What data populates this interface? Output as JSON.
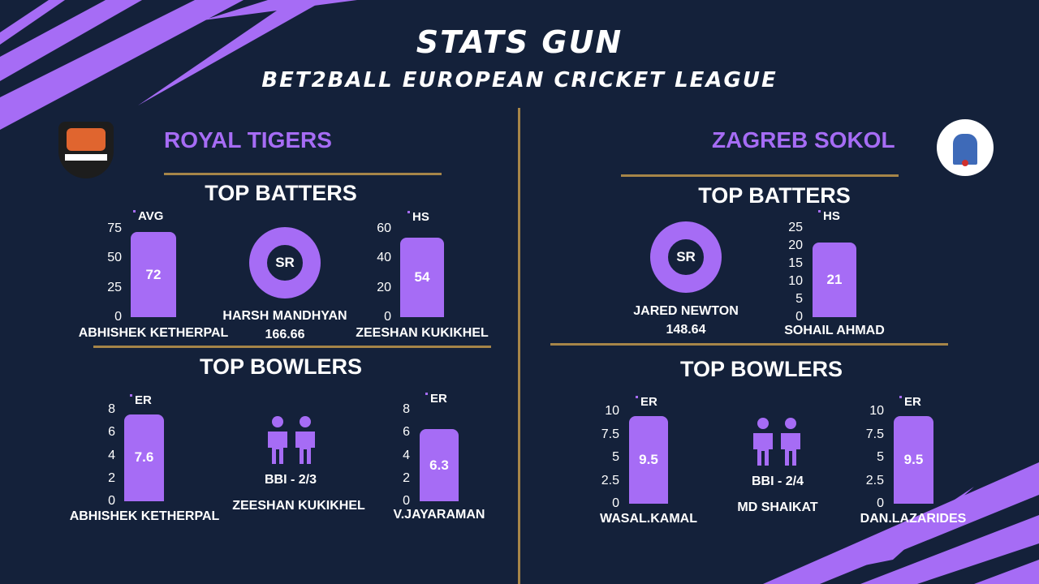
{
  "header": {
    "title": "STATS GUN",
    "subtitle": "BET2BALL EUROPEAN CRICKET LEAGUE"
  },
  "colors": {
    "background": "#14213a",
    "accent": "#a66cf5",
    "divider": "#a68548"
  },
  "left_team": {
    "name": "ROYAL TIGERS",
    "batters_heading": "TOP BATTERS",
    "bowlers_heading": "TOP BOWLERS",
    "sr_player": {
      "label": "SR",
      "name": "HARSH MANDHYAN",
      "value": "166.66"
    },
    "bbi_player": {
      "label": "BBI - 2/3",
      "name": "ZEESHAN KUKIKHEL"
    }
  },
  "right_team": {
    "name": "ZAGREB SOKOL",
    "batters_heading": "TOP BATTERS",
    "bowlers_heading": "TOP BOWLERS",
    "sr_player": {
      "label": "SR",
      "name": "JARED NEWTON",
      "value": "148.64"
    },
    "bbi_player": {
      "label": "BBI - 2/4",
      "name": "MD SHAIKAT"
    }
  },
  "chart_data": [
    {
      "type": "bar",
      "metric": "AVG",
      "categories": [
        "ABHISHEK KETHERPAL"
      ],
      "values": [
        72
      ],
      "ticks": [
        "0",
        "25",
        "50",
        "75"
      ],
      "ylim": [
        0,
        75
      ]
    },
    {
      "type": "bar",
      "metric": "HS",
      "categories": [
        "ZEESHAN KUKIKHEL"
      ],
      "values": [
        54
      ],
      "ticks": [
        "0",
        "20",
        "40",
        "60"
      ],
      "ylim": [
        0,
        60
      ]
    },
    {
      "type": "bar",
      "metric": "ER",
      "categories": [
        "ABHISHEK KETHERPAL"
      ],
      "values": [
        7.6
      ],
      "ticks": [
        "0",
        "2",
        "4",
        "6",
        "8"
      ],
      "ylim": [
        0,
        8
      ]
    },
    {
      "type": "bar",
      "metric": "ER",
      "categories": [
        "V.JAYARAMAN"
      ],
      "values": [
        6.3
      ],
      "ticks": [
        "0",
        "2",
        "4",
        "6",
        "8"
      ],
      "ylim": [
        0,
        8
      ]
    },
    {
      "type": "bar",
      "metric": "HS",
      "categories": [
        "SOHAIL AHMAD"
      ],
      "values": [
        21
      ],
      "ticks": [
        "0",
        "5",
        "10",
        "15",
        "20",
        "25"
      ],
      "ylim": [
        0,
        25
      ]
    },
    {
      "type": "bar",
      "metric": "ER",
      "categories": [
        "WASAL.KAMAL"
      ],
      "values": [
        9.5
      ],
      "ticks": [
        "0",
        "2.5",
        "5",
        "7.5",
        "10"
      ],
      "ylim": [
        0,
        10
      ]
    },
    {
      "type": "bar",
      "metric": "ER",
      "categories": [
        "DAN.LAZARIDES"
      ],
      "values": [
        9.5
      ],
      "ticks": [
        "0",
        "2.5",
        "5",
        "7.5",
        "10"
      ],
      "ylim": [
        0,
        10
      ]
    }
  ]
}
